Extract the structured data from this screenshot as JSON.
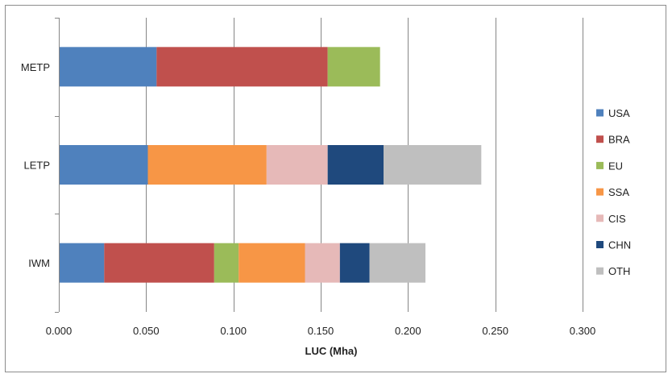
{
  "chart_data": {
    "type": "bar",
    "orientation": "horizontal",
    "stacked": true,
    "categories": [
      "IWM",
      "LETP",
      "METP"
    ],
    "series": [
      {
        "name": "USA",
        "color": "#4f81bd",
        "values": [
          0.026,
          0.051,
          0.056
        ]
      },
      {
        "name": "BRA",
        "color": "#c0504d",
        "values": [
          0.063,
          0.0,
          0.098
        ]
      },
      {
        "name": "EU",
        "color": "#9bbb59",
        "values": [
          0.014,
          0.0,
          0.03
        ]
      },
      {
        "name": "SSA",
        "color": "#f79646",
        "values": [
          0.038,
          0.068,
          0.0
        ]
      },
      {
        "name": "CIS",
        "color": "#e6b9b8",
        "values": [
          0.02,
          0.035,
          0.0
        ]
      },
      {
        "name": "CHN",
        "color": "#1f497d",
        "values": [
          0.017,
          0.032,
          0.0
        ]
      },
      {
        "name": "OTH",
        "color": "#bfbfbf",
        "values": [
          0.032,
          0.056,
          0.0
        ]
      }
    ],
    "xlabel": "LUC (Mha)",
    "ylabel": "",
    "xlim": [
      0,
      0.3
    ],
    "xticks": [
      "0.000",
      "0.050",
      "0.100",
      "0.150",
      "0.200",
      "0.250",
      "0.300"
    ],
    "grid": "vertical",
    "legend_position": "right",
    "gridline_color": "#868686"
  }
}
